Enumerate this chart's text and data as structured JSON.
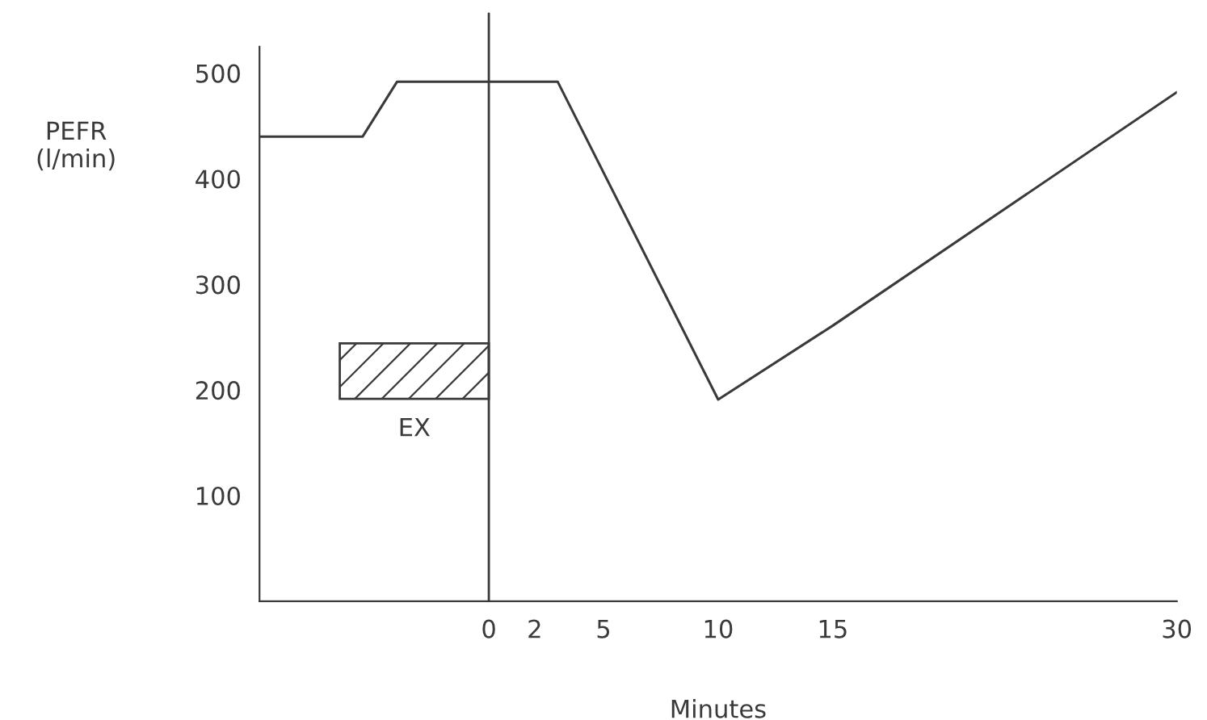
{
  "chart_data": {
    "type": "line",
    "xlabel": "Minutes",
    "ylabel": "PEFR\n(l/min)",
    "x": [
      -10,
      -5.5,
      -4,
      3,
      10,
      15,
      30
    ],
    "series": [
      {
        "color": "#3a3a3a",
        "values": [
          440,
          440,
          492,
          492,
          191,
          261,
          482
        ]
      }
    ],
    "xlim": [
      -10,
      30
    ],
    "xticks": [
      0,
      2,
      5,
      10,
      15,
      30
    ],
    "ylim": [
      0,
      525
    ],
    "yticks": [
      100,
      200,
      300,
      400,
      500
    ],
    "ref_lines": [
      {
        "axis": "x",
        "value": 0,
        "color": "#3a3a3a"
      }
    ],
    "bands": [
      {
        "axis": "x",
        "from": -6.5,
        "to": 0,
        "label": "EX",
        "color": "#3a3a3a"
      }
    ],
    "grid": false,
    "legend": false,
    "marker": "none",
    "line_style": "solid"
  }
}
